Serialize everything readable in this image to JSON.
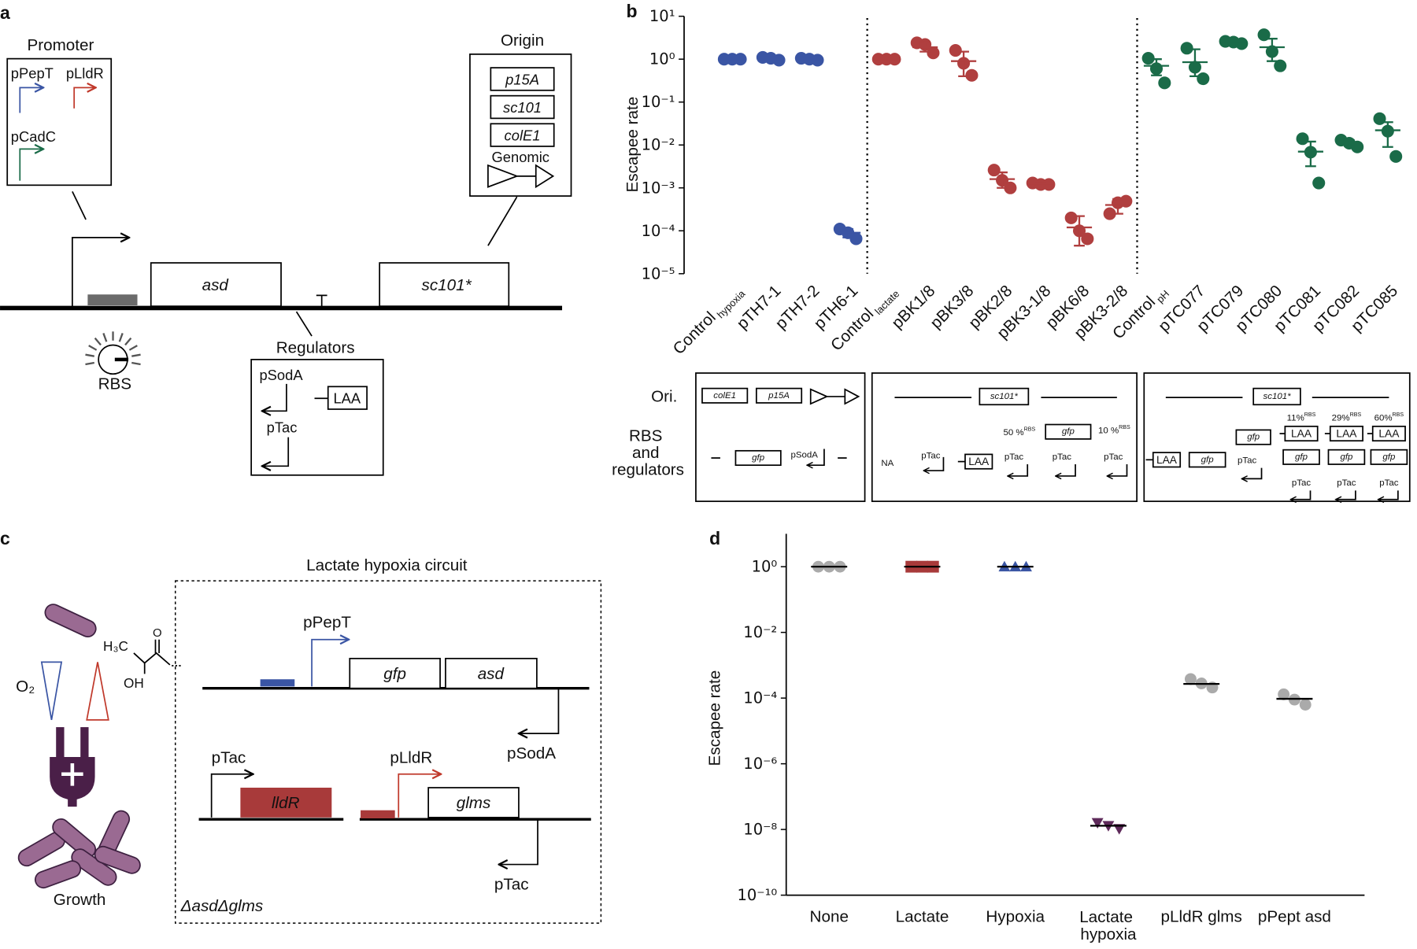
{
  "panel_labels": [
    "a",
    "b",
    "c",
    "d"
  ],
  "panel_a": {
    "promoter_title": "Promoter",
    "promoters": [
      "pPepT",
      "pLldR",
      "pCadC"
    ],
    "origin_title": "Origin",
    "origins": [
      "p15A",
      "sc101",
      "colE1"
    ],
    "genomic": "Genomic",
    "genes": [
      "asd",
      "sc101*"
    ],
    "rbs": "RBS",
    "regulators_title": "Regulators",
    "regulators": [
      "pSodA",
      "LAA",
      "pTac"
    ]
  },
  "panel_b_table": {
    "row_labels": [
      "Ori.",
      "RBS\nand\nregulators"
    ],
    "box1": [
      "colE1",
      "p15A",
      "gfp",
      "pSodA"
    ],
    "box2": [
      "sc101*",
      "NA",
      "pTac",
      "LAA",
      "50 %RBS",
      "gfp",
      "pTac",
      "pTac",
      "10 %RBS",
      "pTac"
    ],
    "box3": [
      "sc101*",
      "LAA",
      "gfp",
      "gfp",
      "pTac",
      "11%RBS",
      "29%RBS",
      "60%RBS",
      "LAA",
      "LAA",
      "LAA",
      "gfp",
      "gfp",
      "gfp",
      "pTac",
      "pTac",
      "pTac"
    ]
  },
  "panel_c": {
    "title": "Lactate hypoxia circuit",
    "oxygen": "O₂",
    "lactate": [
      "H₃C",
      "OH",
      "O"
    ],
    "growth": "Growth",
    "strain": "ΔasdΔglms",
    "circuit": [
      "pPepT",
      "gfp",
      "asd",
      "pSodA",
      "pTac",
      "lldR",
      "pLldR",
      "glms",
      "pTac"
    ]
  },
  "chart_data": [
    {
      "type": "strip",
      "y_label": "Escapee rate",
      "log_scale": true,
      "ylim": [
        1e-05,
        10
      ],
      "yticks": [
        {
          "value": 10,
          "label": "10¹"
        },
        {
          "value": 1,
          "label": "10⁰"
        },
        {
          "value": 0.1,
          "label": "10⁻¹"
        },
        {
          "value": 0.01,
          "label": "10⁻²"
        },
        {
          "value": 0.001,
          "label": "10⁻³"
        },
        {
          "value": 0.0001,
          "label": "10⁻⁴"
        },
        {
          "value": 1e-05,
          "label": "10⁻⁵"
        }
      ],
      "categories": [
        "Control hypoxia",
        "pTH7-1",
        "pTH7-2",
        "pTH6-1",
        "Control lactate",
        "pBK1/8",
        "pBK3/8",
        "pBK2/8",
        "pBK3-1/8",
        "pBK6/8",
        "pBK3-2/8",
        "Control pH",
        "pTC077",
        "pTC079",
        "pTC080",
        "pTC081",
        "pTC082",
        "pTC085"
      ],
      "colors": [
        "#3a55a4",
        "#3a55a4",
        "#3a55a4",
        "#3a55a4",
        "#b03f3f",
        "#b03f3f",
        "#b03f3f",
        "#b03f3f",
        "#b03f3f",
        "#b03f3f",
        "#b03f3f",
        "#1a6b48",
        "#1a6b48",
        "#1a6b48",
        "#1a6b48",
        "#1a6b48",
        "#1a6b48",
        "#1a6b48"
      ],
      "replicates": [
        [
          1,
          1,
          1
        ],
        [
          1.1,
          1.05,
          0.95
        ],
        [
          1.05,
          1,
          0.95
        ],
        [
          0.00011,
          9e-05,
          6.5e-05
        ],
        [
          1,
          1,
          1
        ],
        [
          2.4,
          2.2,
          1.4
        ],
        [
          1.6,
          0.8,
          0.42
        ],
        [
          0.0026,
          0.0015,
          0.001
        ],
        [
          0.0013,
          0.0012,
          0.0012
        ],
        [
          0.0002,
          0.0001,
          6.5e-05
        ],
        [
          0.00025,
          0.00045,
          0.00049
        ],
        [
          1.05,
          0.6,
          0.28
        ],
        [
          1.8,
          0.65,
          0.35
        ],
        [
          2.6,
          2.5,
          2.3
        ],
        [
          3.7,
          1.5,
          0.7
        ],
        [
          0.014,
          0.0068,
          0.0013
        ],
        [
          0.013,
          0.011,
          0.009
        ],
        [
          0.041,
          0.021,
          0.0054
        ]
      ],
      "means": [
        1,
        1,
        1,
        9e-05,
        1,
        1.9,
        0.9,
        0.0016,
        0.00125,
        0.00012,
        0.0004,
        0.7,
        0.85,
        2.4,
        1.9,
        0.007,
        0.011,
        0.022
      ],
      "err_low": [
        1,
        0.95,
        0.95,
        7e-05,
        1,
        1.5,
        0.4,
        0.001,
        0.00118,
        4.5e-05,
        0.00025,
        0.42,
        0.4,
        2.3,
        0.9,
        0.0032,
        0.0095,
        0.009
      ],
      "err_high": [
        1,
        1.1,
        1.05,
        0.00011,
        1,
        2.5,
        1.5,
        0.0023,
        0.0013,
        0.00022,
        0.00055,
        1,
        1.7,
        2.6,
        3,
        0.012,
        0.013,
        0.034
      ]
    },
    {
      "type": "strip",
      "y_label": "Escapee rate",
      "log_scale": true,
      "ylim": [
        1e-10,
        10
      ],
      "yticks": [
        {
          "value": 1,
          "label": "10⁰"
        },
        {
          "value": 0.01,
          "label": "10⁻²"
        },
        {
          "value": 0.0001,
          "label": "10⁻⁴"
        },
        {
          "value": 1e-06,
          "label": "10⁻⁶"
        },
        {
          "value": 1e-08,
          "label": "10⁻⁸"
        },
        {
          "value": 1e-10,
          "label": "10⁻¹⁰"
        }
      ],
      "categories": [
        "None",
        "Lactate",
        "Hypoxia",
        "Lactate\nhypoxia",
        "pLldR glms",
        "pPept asd"
      ],
      "colors": [
        "#aaaaaa",
        "#a83a3a",
        "#3a55a4",
        "#5e2a5a",
        "#aaaaaa",
        "#aaaaaa"
      ],
      "markers": [
        "circle",
        "square",
        "triangle",
        "triangle-down",
        "circle",
        "circle"
      ],
      "mean_color": "#000000",
      "replicates": [
        [
          1,
          1,
          1
        ],
        [
          1,
          1,
          1
        ],
        [
          1,
          1,
          1
        ],
        [
          1.6e-08,
          1.3e-08,
          1.05e-08
        ],
        [
          0.00038,
          0.00028,
          0.00021
        ],
        [
          0.00013,
          9e-05,
          6.3e-05
        ]
      ],
      "means": [
        1,
        1,
        1,
        1.3e-08,
        0.00027,
        9.5e-05
      ]
    }
  ]
}
